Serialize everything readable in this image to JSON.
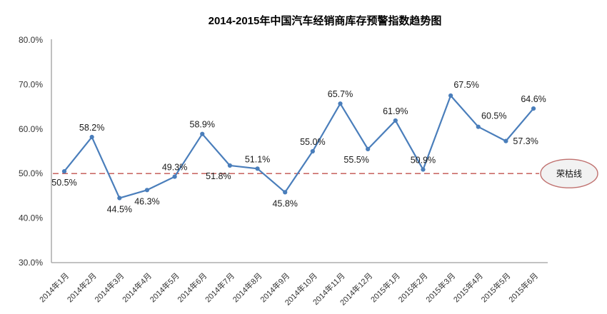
{
  "chart_data": {
    "type": "line",
    "title": "2014-2015年中国汽车经销商库存预警指数趋势图",
    "categories": [
      "2014年1月",
      "2014年2月",
      "2014年3月",
      "2014年4月",
      "2014年5月",
      "2014年6月",
      "2014年7月",
      "2014年8月",
      "2014年9月",
      "2014年10月",
      "2014年11月",
      "2014年12月",
      "2015年1月",
      "2015年2月",
      "2015年3月",
      "2015年4月",
      "2015年5月",
      "2015年6月"
    ],
    "values": [
      50.5,
      58.2,
      44.5,
      46.3,
      49.3,
      58.9,
      51.8,
      51.1,
      45.8,
      55.0,
      65.7,
      55.5,
      61.9,
      50.9,
      67.5,
      60.5,
      57.3,
      64.6
    ],
    "data_labels": [
      "50.5%",
      "58.2%",
      "44.5%",
      "46.3%",
      "49.3%",
      "58.9%",
      "51.8%",
      "51.1%",
      "45.8%",
      "55.0%",
      "65.7%",
      "55.5%",
      "61.9%",
      "50.9%",
      "67.5%",
      "60.5%",
      "57.3%",
      "64.6%"
    ],
    "label_positions": [
      "below",
      "above",
      "below",
      "below",
      "above",
      "above",
      "below-left",
      "above",
      "below",
      "above",
      "above",
      "below-left",
      "above",
      "above",
      "above-right",
      "above-right",
      "right",
      "above"
    ],
    "ylim": [
      30,
      80
    ],
    "y_ticks": [
      {
        "value": 80,
        "label": "80.0%"
      },
      {
        "value": 70,
        "label": "70.0%"
      },
      {
        "value": 60,
        "label": "60.0%"
      },
      {
        "value": 50,
        "label": "50.0%"
      },
      {
        "value": 40,
        "label": "40.0%"
      },
      {
        "value": 30,
        "label": "30.0%"
      }
    ],
    "grid": false,
    "legend": "none",
    "reference_line": {
      "value": 50,
      "label": "荣枯线",
      "style": "dashed",
      "line_color": "#c0504d",
      "bubble_fill": "#f2f2f2",
      "bubble_border": "#c0716f"
    },
    "colors": {
      "line": "#4a7ebb",
      "marker": "#4a7ebb",
      "axis": "#9e9e9e",
      "background": "#ffffff"
    }
  }
}
